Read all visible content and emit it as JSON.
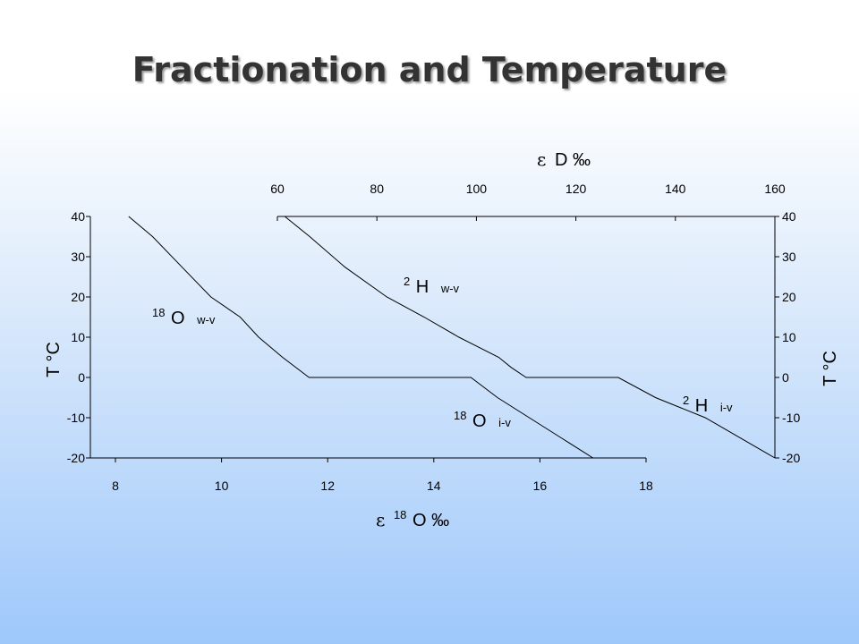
{
  "slide": {
    "title": "Fractionation and Temperature"
  },
  "chart_data": {
    "type": "line",
    "bottom_axis": {
      "symbol": "ε",
      "superscript": "18",
      "label_main": "O ‰",
      "ticks": [
        "8",
        "10",
        "12",
        "14",
        "16",
        "18"
      ],
      "range": [
        8,
        18
      ]
    },
    "top_axis": {
      "symbol": "ε",
      "label_main": "D ‰",
      "ticks": [
        "60",
        "80",
        "100",
        "120",
        "140",
        "160"
      ],
      "range": [
        60,
        160
      ]
    },
    "left_axis": {
      "label": "T °C",
      "ticks": [
        "40",
        "30",
        "20",
        "10",
        "0",
        "-10",
        "-20"
      ],
      "range": [
        -20,
        40
      ]
    },
    "right_axis": {
      "label": "T °C",
      "ticks": [
        "40",
        "30",
        "20",
        "10",
        "0",
        "-10",
        "-20"
      ],
      "range": [
        -20,
        40
      ]
    },
    "grid": false,
    "series": [
      {
        "axis": "bottom",
        "labels": [
          {
            "sup": "18",
            "main": "O",
            "sub": "w-v"
          },
          {
            "sup": "18",
            "main": "O",
            "sub": "i-v"
          }
        ],
        "x": [
          8.25,
          8.7,
          9.25,
          9.8,
          10.35,
          10.7,
          11.15,
          11.65,
          12.15,
          13.0,
          14.0,
          14.7,
          15.2,
          15.8,
          16.4,
          17.0
        ],
        "y": [
          40,
          35,
          27.5,
          20,
          15,
          10,
          5,
          0,
          0,
          0,
          0,
          0,
          -5,
          -10,
          -15,
          -20
        ]
      },
      {
        "axis": "top",
        "labels": [
          {
            "sup": "2",
            "main": "H",
            "sub": "w-v"
          },
          {
            "sup": "2",
            "main": "H",
            "sub": "i-v"
          }
        ],
        "x": [
          61.5,
          66.5,
          73.5,
          82,
          89.5,
          96.5,
          104.5,
          107,
          110,
          120,
          128.5,
          136,
          146,
          160
        ],
        "y": [
          40,
          35,
          27.5,
          20,
          15,
          10,
          5,
          2.5,
          0,
          0,
          0,
          -5,
          -10,
          -20
        ]
      }
    ]
  }
}
